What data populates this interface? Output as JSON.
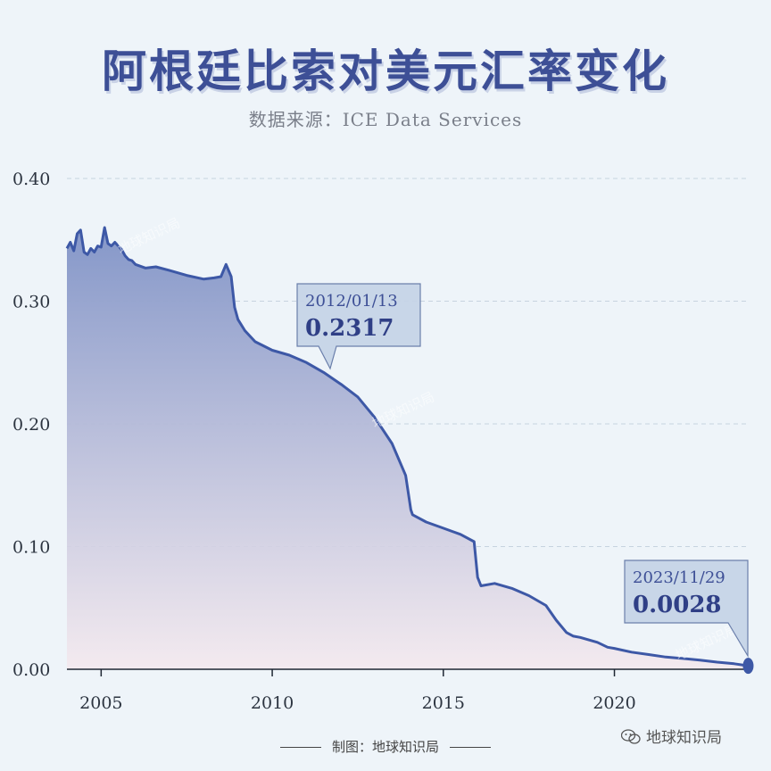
{
  "title": "阿根廷比索对美元汇率变化",
  "subtitle": "数据来源：ICE Data Services",
  "footer": {
    "credit": "制图：地球知识局"
  },
  "brand": {
    "name": "地球知识局",
    "icon": "wechat-icon"
  },
  "watermark": "地球知识局",
  "colors": {
    "line": "#3d58a6",
    "fill_top": "#7f92c6",
    "fill_bottom": "#f4e9ee",
    "title": "#3d4f96",
    "grid": "#c7d3df"
  },
  "chart_data": {
    "type": "area",
    "title": "阿根廷比索对美元汇率变化",
    "xlabel": "",
    "ylabel": "",
    "xlim": [
      2004.0,
      2023.95
    ],
    "ylim": [
      0,
      0.4
    ],
    "yticks": [
      0.0,
      0.1,
      0.2,
      0.3,
      0.4
    ],
    "yticklabels": [
      "0.00",
      "0.10",
      "0.20",
      "0.30",
      "0.40"
    ],
    "xticks": [
      2005,
      2010,
      2015,
      2020
    ],
    "xticklabels": [
      "2005",
      "2010",
      "2015",
      "2020"
    ],
    "grid": "horizontal dashed",
    "series": [
      {
        "x": [
          2004.0,
          2004.1,
          2004.2,
          2004.3,
          2004.4,
          2004.5,
          2004.6,
          2004.7,
          2004.8,
          2004.9,
          2005.0,
          2005.1,
          2005.2,
          2005.3,
          2005.4,
          2005.5,
          2005.6,
          2005.7,
          2005.8,
          2005.9,
          2006.0,
          2006.3,
          2006.6,
          2007.0,
          2007.5,
          2008.0,
          2008.3,
          2008.5,
          2008.65,
          2008.8,
          2008.9,
          2009.0,
          2009.2,
          2009.5,
          2010.0,
          2010.5,
          2011.0,
          2011.5,
          2012.04,
          2012.5,
          2013.0,
          2013.5,
          2013.9,
          2014.05,
          2014.1,
          2014.5,
          2015.0,
          2015.5,
          2015.9,
          2016.0,
          2016.1,
          2016.5,
          2017.0,
          2017.5,
          2018.0,
          2018.3,
          2018.6,
          2018.8,
          2019.0,
          2019.5,
          2019.8,
          2020.0,
          2020.5,
          2021.0,
          2021.5,
          2022.0,
          2022.5,
          2023.0,
          2023.5,
          2023.91
        ],
        "y": [
          0.343,
          0.348,
          0.341,
          0.355,
          0.358,
          0.34,
          0.338,
          0.343,
          0.34,
          0.345,
          0.344,
          0.36,
          0.347,
          0.345,
          0.348,
          0.345,
          0.342,
          0.337,
          0.334,
          0.333,
          0.33,
          0.327,
          0.328,
          0.325,
          0.321,
          0.318,
          0.319,
          0.32,
          0.33,
          0.32,
          0.295,
          0.285,
          0.276,
          0.267,
          0.26,
          0.256,
          0.25,
          0.242,
          0.2317,
          0.222,
          0.205,
          0.184,
          0.158,
          0.13,
          0.126,
          0.12,
          0.115,
          0.11,
          0.104,
          0.075,
          0.068,
          0.07,
          0.066,
          0.06,
          0.052,
          0.04,
          0.03,
          0.027,
          0.026,
          0.022,
          0.018,
          0.017,
          0.014,
          0.012,
          0.01,
          0.0088,
          0.0075,
          0.0058,
          0.0045,
          0.0028
        ]
      }
    ],
    "annotations": [
      {
        "date": "2012/01/13",
        "value": "0.2317",
        "x": 2012.04,
        "y": 0.2317
      },
      {
        "date": "2023/11/29",
        "value": "0.0028",
        "x": 2023.91,
        "y": 0.0028
      }
    ]
  }
}
